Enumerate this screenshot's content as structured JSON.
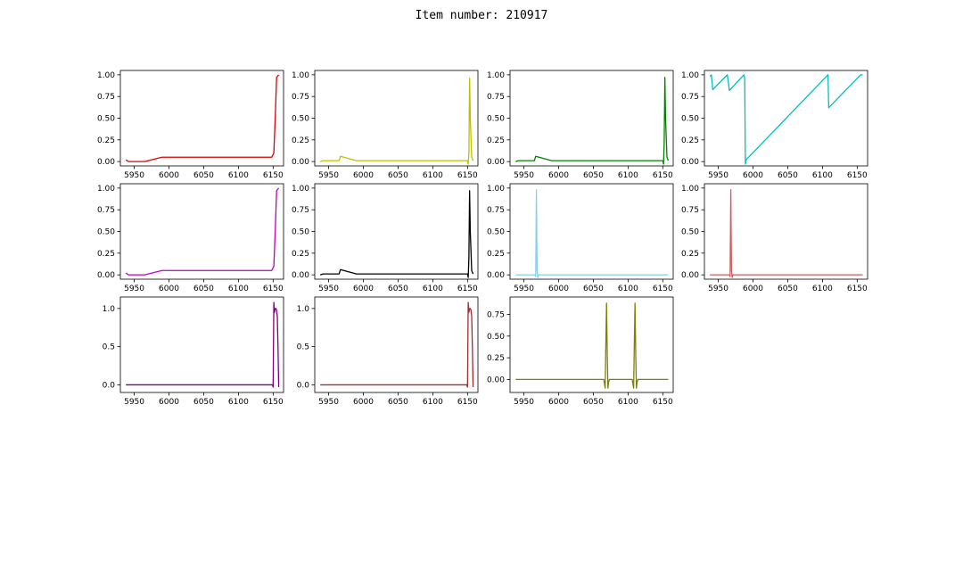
{
  "figure": {
    "title": "Item number: 210917"
  },
  "chart_data": [
    {
      "type": "line",
      "color": "#dd0000",
      "xlim": [
        5930,
        6165
      ],
      "ylim": [
        -0.05,
        1.05
      ],
      "xticks": [
        5950,
        6000,
        6050,
        6100,
        6150
      ],
      "yticks": [
        0,
        0.25,
        0.5,
        0.75,
        1.0
      ],
      "xtick_labels": [
        "5950",
        "6000",
        "6050",
        "6100",
        "6150"
      ],
      "ytick_labels": [
        "0.00",
        "0.25",
        "0.50",
        "0.75",
        "1.00"
      ],
      "x": [
        5938,
        5942,
        5950,
        5965,
        5990,
        6000,
        6050,
        6100,
        6148,
        6151,
        6153,
        6155,
        6158
      ],
      "y": [
        0.02,
        0.0,
        0.0,
        0.0,
        0.05,
        0.05,
        0.05,
        0.05,
        0.05,
        0.1,
        0.5,
        0.97,
        1.0
      ]
    },
    {
      "type": "line",
      "color": "#bfbf00",
      "xlim": [
        5930,
        6165
      ],
      "ylim": [
        -0.05,
        1.05
      ],
      "xticks": [
        5950,
        6000,
        6050,
        6100,
        6150
      ],
      "yticks": [
        0,
        0.25,
        0.5,
        0.75,
        1.0
      ],
      "xtick_labels": [
        "5950",
        "6000",
        "6050",
        "6100",
        "6150"
      ],
      "ytick_labels": [
        "0.00",
        "0.25",
        "0.50",
        "0.75",
        "1.00"
      ],
      "x": [
        5938,
        5942,
        5965,
        5967,
        5990,
        6050,
        6100,
        6150,
        6151,
        6152,
        6153,
        6154,
        6156,
        6158
      ],
      "y": [
        0.0,
        0.01,
        0.01,
        0.06,
        0.01,
        0.01,
        0.01,
        0.01,
        -0.03,
        0.1,
        0.96,
        0.5,
        0.05,
        0.01
      ]
    },
    {
      "type": "line",
      "color": "#008000",
      "xlim": [
        5930,
        6165
      ],
      "ylim": [
        -0.05,
        1.05
      ],
      "xticks": [
        5950,
        6000,
        6050,
        6100,
        6150
      ],
      "yticks": [
        0,
        0.25,
        0.5,
        0.75,
        1.0
      ],
      "xtick_labels": [
        "5950",
        "6000",
        "6050",
        "6100",
        "6150"
      ],
      "ytick_labels": [
        "0.00",
        "0.25",
        "0.50",
        "0.75",
        "1.00"
      ],
      "x": [
        5938,
        5942,
        5965,
        5967,
        5990,
        6050,
        6100,
        6150,
        6151,
        6152,
        6153,
        6154,
        6156,
        6158
      ],
      "y": [
        0.0,
        0.01,
        0.01,
        0.06,
        0.01,
        0.01,
        0.01,
        0.01,
        -0.03,
        0.2,
        0.97,
        0.5,
        0.05,
        0.01
      ]
    },
    {
      "type": "line",
      "color": "#00bfbf",
      "xlim": [
        5930,
        6165
      ],
      "ylim": [
        -0.05,
        1.05
      ],
      "xticks": [
        5950,
        6000,
        6050,
        6100,
        6150
      ],
      "yticks": [
        0,
        0.25,
        0.5,
        0.75,
        1.0
      ],
      "xtick_labels": [
        "5950",
        "6000",
        "6050",
        "6100",
        "6150"
      ],
      "ytick_labels": [
        "0.00",
        "0.25",
        "0.50",
        "0.75",
        "1.00"
      ],
      "x": [
        5938,
        5940,
        5942,
        5963,
        5966,
        5987,
        5988,
        5989,
        5990,
        6108,
        6109,
        6155,
        6158
      ],
      "y": [
        0.98,
        1.0,
        0.83,
        1.0,
        0.82,
        1.0,
        0.96,
        -0.03,
        0.02,
        1.0,
        0.62,
        1.0,
        1.0
      ]
    },
    {
      "type": "line",
      "color": "#bf00bf",
      "xlim": [
        5930,
        6165
      ],
      "ylim": [
        -0.05,
        1.05
      ],
      "xticks": [
        5950,
        6000,
        6050,
        6100,
        6150
      ],
      "yticks": [
        0,
        0.25,
        0.5,
        0.75,
        1.0
      ],
      "xtick_labels": [
        "5950",
        "6000",
        "6050",
        "6100",
        "6150"
      ],
      "ytick_labels": [
        "0.00",
        "0.25",
        "0.50",
        "0.75",
        "1.00"
      ],
      "x": [
        5938,
        5942,
        5950,
        5965,
        5990,
        6000,
        6050,
        6100,
        6148,
        6151,
        6153,
        6155,
        6158
      ],
      "y": [
        0.02,
        0.0,
        0.0,
        0.0,
        0.05,
        0.05,
        0.05,
        0.05,
        0.05,
        0.1,
        0.5,
        0.97,
        1.0
      ]
    },
    {
      "type": "line",
      "color": "#000000",
      "xlim": [
        5930,
        6165
      ],
      "ylim": [
        -0.05,
        1.05
      ],
      "xticks": [
        5950,
        6000,
        6050,
        6100,
        6150
      ],
      "yticks": [
        0,
        0.25,
        0.5,
        0.75,
        1.0
      ],
      "xtick_labels": [
        "5950",
        "6000",
        "6050",
        "6100",
        "6150"
      ],
      "ytick_labels": [
        "0.00",
        "0.25",
        "0.50",
        "0.75",
        "1.00"
      ],
      "x": [
        5938,
        5942,
        5965,
        5967,
        5990,
        6050,
        6100,
        6150,
        6151,
        6152,
        6153,
        6154,
        6156,
        6158
      ],
      "y": [
        0.0,
        0.01,
        0.01,
        0.06,
        0.01,
        0.01,
        0.01,
        0.01,
        -0.03,
        0.2,
        0.97,
        0.5,
        0.05,
        0.01
      ]
    },
    {
      "type": "line",
      "color": "#87ceeb",
      "xlim": [
        5930,
        6165
      ],
      "ylim": [
        -0.05,
        1.05
      ],
      "xticks": [
        5950,
        6000,
        6050,
        6100,
        6150
      ],
      "yticks": [
        0,
        0.25,
        0.5,
        0.75,
        1.0
      ],
      "xtick_labels": [
        "5950",
        "6000",
        "6050",
        "6100",
        "6150"
      ],
      "ytick_labels": [
        "0.00",
        "0.25",
        "0.50",
        "0.75",
        "1.00"
      ],
      "x": [
        5938,
        5966,
        5967,
        5968,
        5969,
        5970,
        5971,
        6158
      ],
      "y": [
        0.0,
        0.0,
        -0.02,
        0.98,
        0.05,
        -0.03,
        0.0,
        0.0
      ]
    },
    {
      "type": "line",
      "color": "#cd5c5c",
      "xlim": [
        5930,
        6165
      ],
      "ylim": [
        -0.05,
        1.05
      ],
      "xticks": [
        5950,
        6000,
        6050,
        6100,
        6150
      ],
      "yticks": [
        0,
        0.25,
        0.5,
        0.75,
        1.0
      ],
      "xtick_labels": [
        "5950",
        "6000",
        "6050",
        "6100",
        "6150"
      ],
      "ytick_labels": [
        "0.00",
        "0.25",
        "0.50",
        "0.75",
        "1.00"
      ],
      "x": [
        5938,
        5966,
        5967,
        5968,
        5969,
        5970,
        5971,
        6158
      ],
      "y": [
        0.0,
        0.0,
        -0.02,
        0.98,
        0.05,
        -0.03,
        0.0,
        0.0
      ]
    },
    {
      "type": "line",
      "color": "#800080",
      "xlim": [
        5930,
        6165
      ],
      "ylim": [
        -0.1,
        1.15
      ],
      "xticks": [
        5950,
        6000,
        6050,
        6100,
        6150
      ],
      "yticks": [
        0,
        0.5,
        1.0
      ],
      "xtick_labels": [
        "5950",
        "6000",
        "6050",
        "6100",
        "6150"
      ],
      "ytick_labels": [
        "0.0",
        "0.5",
        "1.0"
      ],
      "x": [
        5938,
        6100,
        6149,
        6150,
        6151,
        6152,
        6153,
        6154,
        6155,
        6156,
        6157,
        6158
      ],
      "y": [
        0.0,
        0.0,
        0.0,
        -0.03,
        1.08,
        0.95,
        1.0,
        1.0,
        0.98,
        0.9,
        0.5,
        -0.03
      ]
    },
    {
      "type": "line",
      "color": "#a52a2a",
      "xlim": [
        5930,
        6165
      ],
      "ylim": [
        -0.1,
        1.15
      ],
      "xticks": [
        5950,
        6000,
        6050,
        6100,
        6150
      ],
      "yticks": [
        0,
        0.5,
        1.0
      ],
      "xtick_labels": [
        "5950",
        "6000",
        "6050",
        "6100",
        "6150"
      ],
      "ytick_labels": [
        "0.0",
        "0.5",
        "1.0"
      ],
      "x": [
        5938,
        6100,
        6149,
        6150,
        6151,
        6152,
        6153,
        6154,
        6155,
        6156,
        6157,
        6158
      ],
      "y": [
        0.0,
        0.0,
        0.0,
        -0.03,
        1.08,
        0.95,
        1.0,
        1.0,
        0.98,
        0.9,
        0.5,
        -0.03
      ]
    },
    {
      "type": "line",
      "color": "#808000",
      "xlim": [
        5930,
        6165
      ],
      "ylim": [
        -0.15,
        0.95
      ],
      "xticks": [
        5950,
        6000,
        6050,
        6100,
        6150
      ],
      "yticks": [
        0,
        0.25,
        0.5,
        0.75
      ],
      "xtick_labels": [
        "5950",
        "6000",
        "6050",
        "6100",
        "6150"
      ],
      "ytick_labels": [
        "0.00",
        "0.25",
        "0.50",
        "0.75"
      ],
      "x": [
        5938,
        6065,
        6066,
        6067,
        6068,
        6069,
        6070,
        6071,
        6072,
        6073,
        6106,
        6107,
        6108,
        6109,
        6110,
        6111,
        6112,
        6113,
        6114,
        6158
      ],
      "y": [
        0.0,
        0.0,
        -0.05,
        -0.1,
        0.4,
        0.88,
        0.3,
        -0.1,
        -0.03,
        0.0,
        0.0,
        -0.05,
        -0.1,
        0.4,
        0.88,
        0.3,
        -0.1,
        -0.03,
        0.0,
        0.0
      ]
    }
  ]
}
